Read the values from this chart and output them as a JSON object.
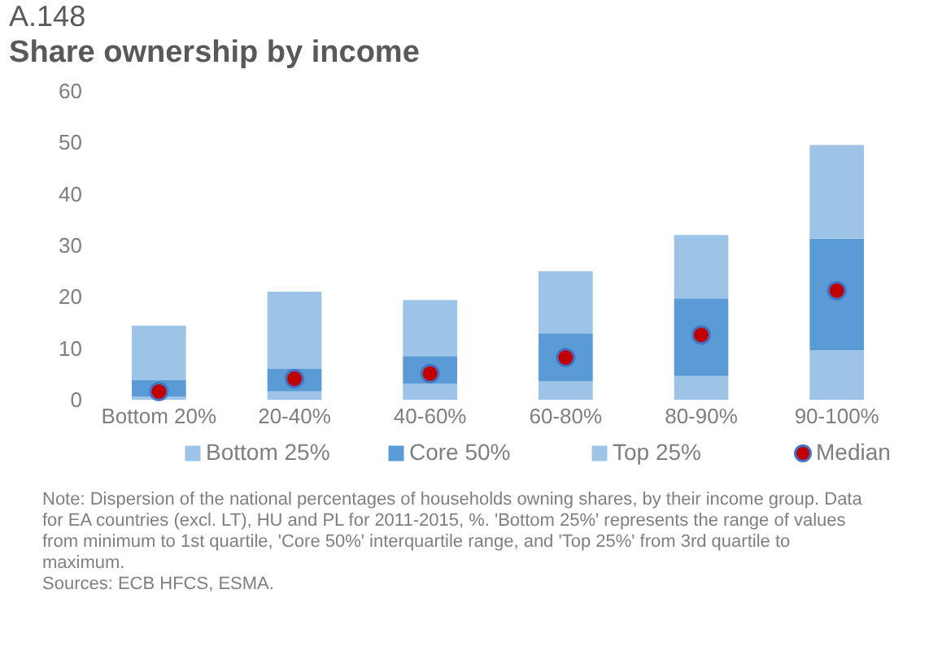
{
  "chart_data": {
    "type": "bar",
    "title": "A.148",
    "subtitle": "Share ownership by income",
    "stacked": true,
    "categories": [
      "Bottom 20%",
      "20-40%",
      "40-60%",
      "60-80%",
      "80-90%",
      "90-100%"
    ],
    "series": [
      {
        "name": "Bottom 25%",
        "color": "#9dc3e6",
        "values": [
          0.6,
          1.6,
          3.1,
          3.6,
          4.6,
          9.6
        ]
      },
      {
        "name": "Core 50%",
        "color": "#5b9bd5",
        "values": [
          3.2,
          4.4,
          5.4,
          9.3,
          15.1,
          21.7
        ]
      },
      {
        "name": "Top 25%",
        "color": "#9dc3e6",
        "values": [
          10.6,
          15.0,
          10.9,
          12.1,
          12.3,
          18.2
        ]
      },
      {
        "name": "Median",
        "type": "scatter",
        "marker": "circle",
        "color": "#c00000",
        "x": [
          "Bottom 20%",
          "20-40%",
          "40-60%",
          "60-80%",
          "80-90%",
          "90-100%"
        ],
        "values": [
          1.6,
          4.1,
          5.1,
          8.2,
          12.6,
          21.2
        ]
      }
    ],
    "ylim": [
      0,
      60
    ],
    "yticks": [
      0,
      10,
      20,
      30,
      40,
      50,
      60
    ],
    "grid": false,
    "legend": "bottom",
    "annotations": [
      "Note: Dispersion of the national percentages of households owning shares, by their income group. Data for EA countries (excl. LT), HU and PL for 2011-2015, %. 'Bottom 25%' represents the range of values from minimum to 1st quartile, 'Core 50%' interquartile range, and 'Top 25%' from 3rd quartile to maximum.",
      "Sources: ECB HFCS, ESMA."
    ]
  }
}
